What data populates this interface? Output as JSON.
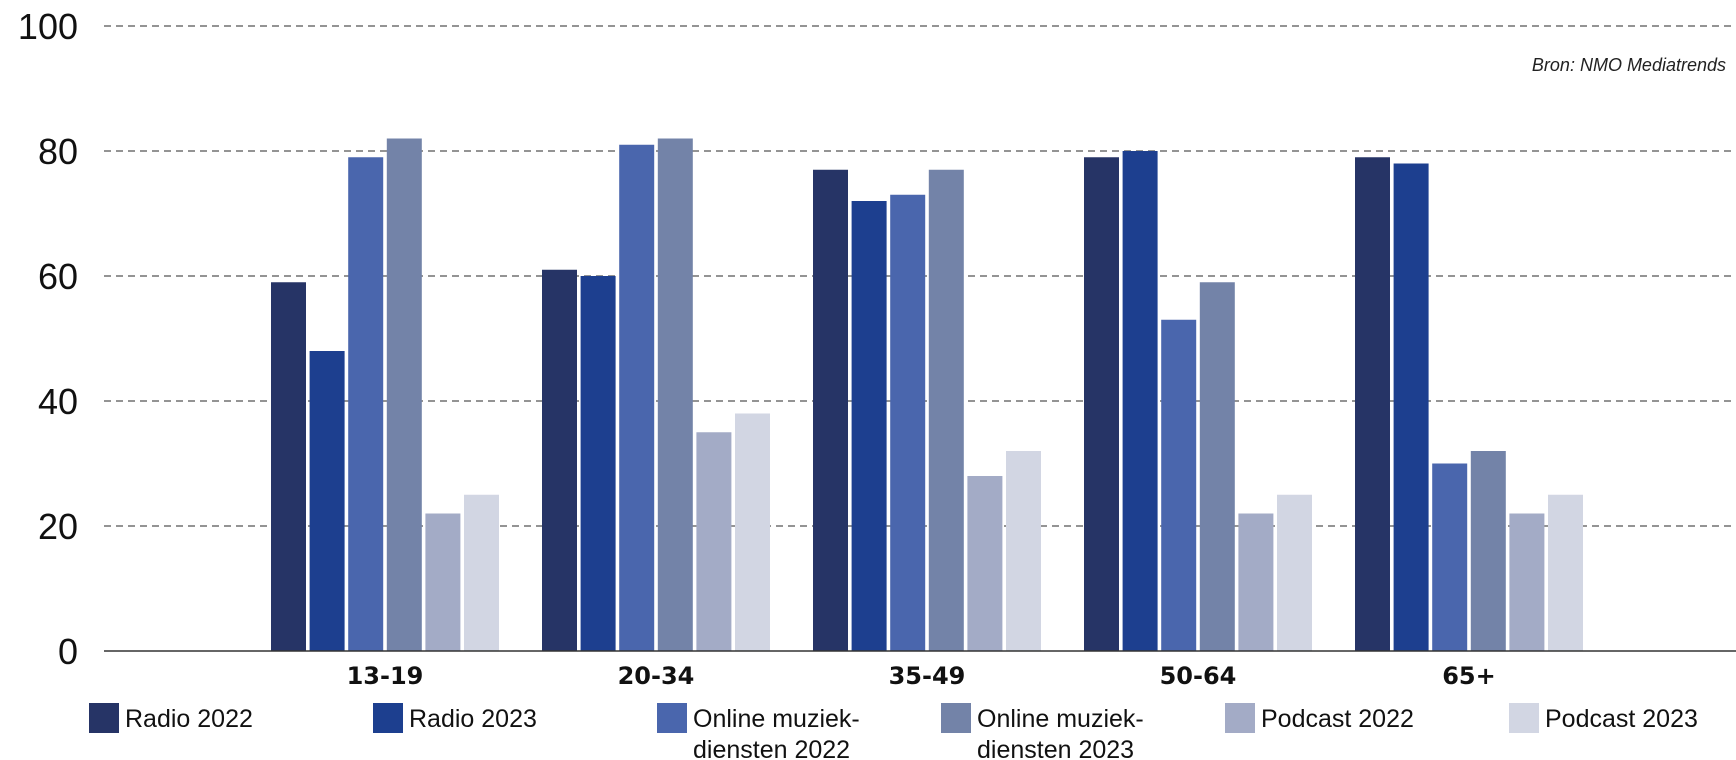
{
  "chart_data": {
    "type": "bar",
    "title": "",
    "xlabel": "",
    "ylabel": "",
    "source": "Bron: NMO Mediatrends",
    "categories": [
      "13-19",
      "20-34",
      "35-49",
      "50-64",
      "65+"
    ],
    "ylim": [
      0,
      100
    ],
    "yticks": [
      "0",
      "20",
      "40",
      "60",
      "80",
      "100"
    ],
    "grid": true,
    "legend_position": "bottom",
    "series": [
      {
        "name": "Radio 2022",
        "label_lines": [
          "Radio 2022"
        ],
        "color": "#263466",
        "values": [
          59,
          61,
          77,
          79,
          79
        ]
      },
      {
        "name": "Radio 2023",
        "label_lines": [
          "Radio 2023"
        ],
        "color": "#1d3f8f",
        "values": [
          48,
          60,
          72,
          80,
          78
        ]
      },
      {
        "name": "Online muziekdiensten 2022",
        "label_lines": [
          "Online muziek-",
          "diensten 2022"
        ],
        "color": "#4a66ad",
        "values": [
          79,
          81,
          73,
          53,
          30
        ]
      },
      {
        "name": "Online muziekdiensten 2023",
        "label_lines": [
          "Online muziek-",
          "diensten 2023"
        ],
        "color": "#7383a8",
        "values": [
          82,
          82,
          77,
          59,
          32
        ]
      },
      {
        "name": "Podcast 2022",
        "label_lines": [
          "Podcast 2022"
        ],
        "color": "#a3abc6",
        "values": [
          22,
          35,
          28,
          22,
          22
        ]
      },
      {
        "name": "Podcast 2023",
        "label_lines": [
          "Podcast 2023"
        ],
        "color": "#d2d6e3",
        "values": [
          25,
          38,
          32,
          25,
          25
        ]
      }
    ]
  }
}
